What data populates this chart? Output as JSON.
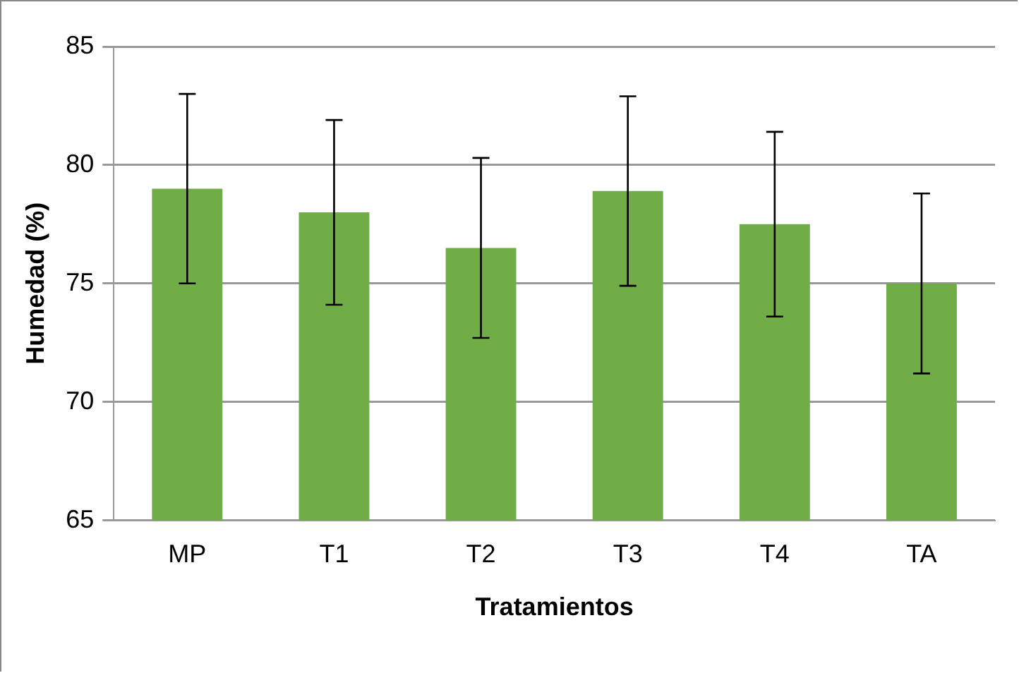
{
  "chart_data": {
    "type": "bar",
    "xlabel": "Tratamientos",
    "ylabel": "Humedad (%)",
    "categories": [
      "MP",
      "T1",
      "T2",
      "T3",
      "T4",
      "TA"
    ],
    "values": [
      79.0,
      78.0,
      76.5,
      78.9,
      77.5,
      75.0
    ],
    "errors": [
      4.0,
      3.9,
      3.8,
      4.0,
      3.9,
      3.8
    ],
    "color": "#70ad47",
    "ylim": [
      65,
      85
    ],
    "yticks": [
      65,
      70,
      75,
      80,
      85
    ],
    "grid": "y",
    "legend": false
  }
}
